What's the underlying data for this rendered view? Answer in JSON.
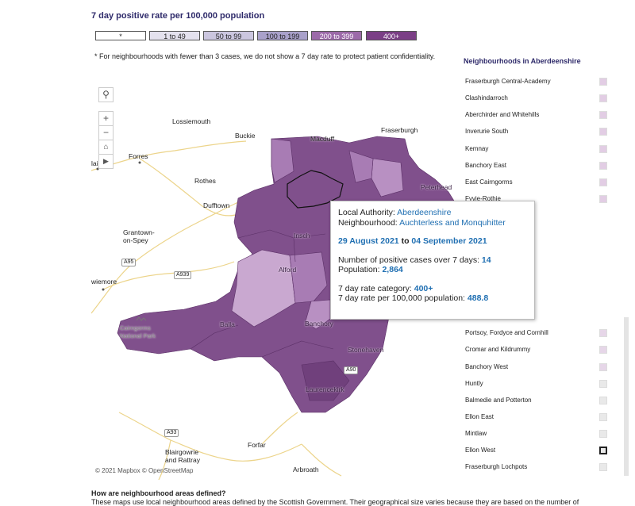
{
  "header": {
    "title": "7 day positive rate per 100,000 population"
  },
  "legend": [
    {
      "label": "*",
      "color": "#ffffff",
      "text_color": "#222222"
    },
    {
      "label": "1 to 49",
      "color": "#e4e1ee",
      "text_color": "#222222"
    },
    {
      "label": "50 to 99",
      "color": "#cbc6df",
      "text_color": "#222222"
    },
    {
      "label": "100 to 199",
      "color": "#a9a1ca",
      "text_color": "#222222"
    },
    {
      "label": "200 to 399",
      "color": "#9c6aa9",
      "text_color": "#ffffff"
    },
    {
      "label": "400+",
      "color": "#7b3f86",
      "text_color": "#ffffff"
    }
  ],
  "note": "* For neighbourhoods with fewer than 3 cases, we do not show a 7 day rate to protect patient confidentiality.",
  "map": {
    "places": [
      {
        "lines": [
          "Lossiemouth"
        ]
      },
      {
        "lines": [
          "Buckie"
        ]
      },
      {
        "lines": [
          "Macduff"
        ]
      },
      {
        "lines": [
          "Fraserburgh"
        ]
      },
      {
        "lines": [
          "Forres"
        ]
      },
      {
        "lines": [
          "lai"
        ]
      },
      {
        "lines": [
          "Rothes"
        ]
      },
      {
        "lines": [
          "Dufftown"
        ]
      },
      {
        "lines": [
          "Peterhead"
        ]
      },
      {
        "lines": [
          "Grantown-",
          "on-Spey"
        ]
      },
      {
        "lines": [
          "wiemore"
        ]
      },
      {
        "lines": [
          "Insch"
        ]
      },
      {
        "lines": [
          "Alford"
        ]
      },
      {
        "lines": [
          "Balla"
        ]
      },
      {
        "lines": [
          "Cairngorms",
          "National Park"
        ]
      },
      {
        "lines": [
          "Banchory"
        ]
      },
      {
        "lines": [
          "Stonehaven"
        ]
      },
      {
        "lines": [
          "Laurencekirk"
        ]
      },
      {
        "lines": [
          "Blairgowrie",
          "and Rattray"
        ]
      },
      {
        "lines": [
          "Forfar"
        ]
      },
      {
        "lines": [
          "Arbroath"
        ]
      }
    ],
    "roads": [
      "A95",
      "A939",
      "A93",
      "A90"
    ],
    "attribution": "© 2021 Mapbox © OpenStreetMap"
  },
  "tooltip": {
    "authority_label": "Local Authority:",
    "authority": "Aberdeenshire",
    "neighbourhood_label": "Neighbourhood:",
    "neighbourhood": "Auchterless and Monquhitter",
    "start": "29 August 2021",
    "to": "to",
    "end": "04 September 2021",
    "cases_label": "Number of positive cases over 7 days:",
    "cases": 14,
    "population_label": "Population:",
    "population": "2,864",
    "category_label": "7 day rate category:",
    "category": "400+",
    "rate_label": "7 day rate per 100,000 population:",
    "rate": 488.8
  },
  "list": {
    "title": "Neighbourhoods in Aberdeenshire",
    "items_top": [
      "Fraserburgh Central-Academy",
      "Clashindarroch",
      "Aberchirder and Whitehills",
      "Inverurie South",
      "Kemnay",
      "Banchory East",
      "East Cairngorms",
      "Fyvie-Rothie"
    ],
    "items_bottom": [
      "Portsoy, Fordyce and Cornhill",
      "Cromar and Kildrummy",
      "Banchory West",
      "Huntly",
      "Balmedie and Potterton",
      "Ellon East",
      "Mintlaw",
      "Ellon West",
      "Fraserburgh Lochpots"
    ]
  },
  "footer": {
    "heading": "How are neighbourhood areas defined?",
    "text": "These maps use local neighbourhood areas defined by the Scottish Government. Their geographical size varies because they are based on the number of"
  }
}
